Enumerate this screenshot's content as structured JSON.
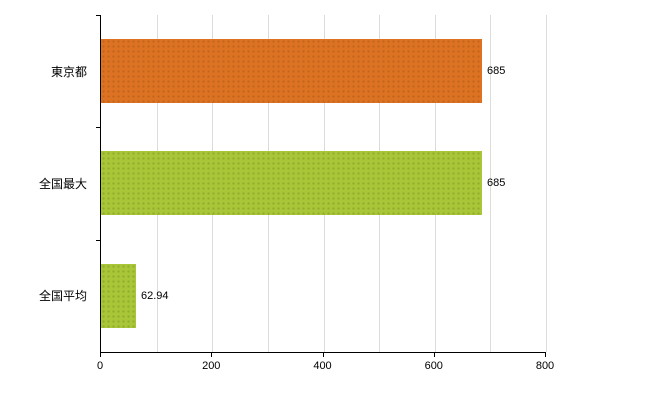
{
  "chart_data": {
    "type": "bar",
    "orientation": "horizontal",
    "title": "",
    "xlabel": "",
    "ylabel": "",
    "categories": [
      "東京都",
      "全国最大",
      "全国平均"
    ],
    "values": [
      685,
      685,
      62.94
    ],
    "value_labels": [
      "685",
      "685",
      "62.94"
    ],
    "bar_colors": [
      "#dd7322",
      "#a8c637",
      "#a8c637"
    ],
    "xlim": [
      0,
      800
    ],
    "x_ticks": [
      0,
      200,
      400,
      600,
      800
    ],
    "grid_step": 100,
    "grid": true,
    "legend_position": "none",
    "colors": {
      "axis": "#000000",
      "gridline": "#dcdcdc",
      "text": "#000000",
      "background": "#ffffff"
    }
  }
}
